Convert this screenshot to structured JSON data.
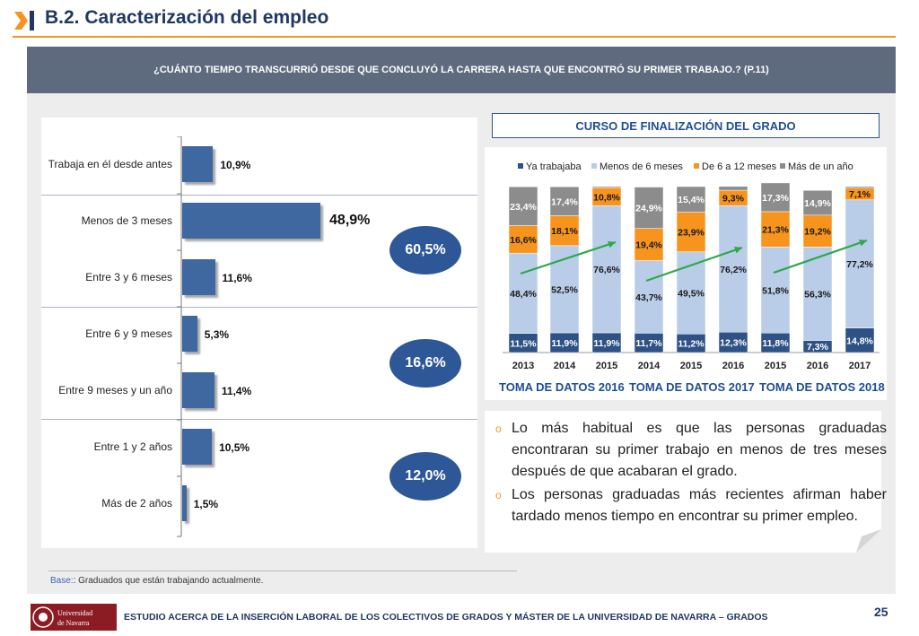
{
  "header": {
    "title": "B.2. Caracterización del empleo"
  },
  "question": "¿CUÁNTO TIEMPO TRANSCURRIÓ DESDE QUE CONCLUYÓ LA CARRERA HASTA QUE ENCONTRÓ SU PRIMER TRABAJO.? (P.11)",
  "groups": [
    {
      "label": "60,5%"
    },
    {
      "label": "16,6%"
    },
    {
      "label": "12,0%"
    }
  ],
  "curso_title": "CURSO DE FINALIZACIÓN DEL GRADO",
  "tomas": [
    {
      "label": "TOMA DE DATOS 2016"
    },
    {
      "label": "TOMA DE DATOS 2017"
    },
    {
      "label": "TOMA DE DATOS 2018"
    }
  ],
  "bullets": [
    {
      "text": "Lo más habitual es que las personas graduadas encontraran su primer trabajo en menos de tres meses después de que acabaran el grado."
    },
    {
      "text": "Los personas graduadas más recientes afirman haber tardado menos tiempo en encontrar su primer empleo."
    }
  ],
  "base": {
    "label": "Base:",
    "text": ": Graduados que están trabajando actualmente."
  },
  "footer": {
    "text": "ESTUDIO ACERCA DE LA INSERCIÓN LABORAL DE LOS COLECTIVOS DE GRADOS Y MÁSTER DE LA UNIVERSIDAD DE NAVARRA – GRADOS",
    "logo_text": "Universidad de Navarra",
    "page_number": "25"
  },
  "colors": {
    "accent": "#f7941d",
    "navy": "#1f3864",
    "bar_blue": "#3f67a0",
    "series": [
      "#2e5286",
      "#b9cde8",
      "#f7941d",
      "#8c8c8c"
    ],
    "arrow": "#2ea84a"
  },
  "chart_data": [
    {
      "type": "bar",
      "orientation": "horizontal",
      "categories": [
        {
          "label": "Trabaja en él desde antes",
          "value": 10.9,
          "value_label": "10,9%"
        },
        {
          "label": "Menos de 3 meses",
          "value": 48.9,
          "value_label": "48,9%"
        },
        {
          "label": "Entre 3 y 6 meses",
          "value": 11.6,
          "value_label": "11,6%"
        },
        {
          "label": "Entre 6 y 9 meses",
          "value": 5.3,
          "value_label": "5,3%"
        },
        {
          "label": "Entre 9 meses y un año",
          "value": 11.4,
          "value_label": "11,4%"
        },
        {
          "label": "Entre 1 y 2 años",
          "value": 10.5,
          "value_label": "10,5%"
        },
        {
          "label": "Más de 2 años",
          "value": 1.5,
          "value_label": "1,5%"
        }
      ]
    },
    {
      "type": "bar",
      "stacked": true,
      "legend": [
        "Ya trabajaba",
        "Menos de 6 meses",
        "De 6 a 12 meses",
        "Más de un año"
      ],
      "legend_position": "top",
      "categories": [
        "2013",
        "2014",
        "2015",
        "2014",
        "2015",
        "2016",
        "2015",
        "2016",
        "2017"
      ],
      "series": [
        {
          "name": "Ya trabajaba",
          "values": [
            11.5,
            11.9,
            11.9,
            11.7,
            11.2,
            12.3,
            11.8,
            7.3,
            14.8
          ],
          "labels": [
            "11,5%",
            "11,9%",
            "11,9%",
            "11,7%",
            "11,2%",
            "12,3%",
            "11,8%",
            "7,3%",
            "14,8%"
          ]
        },
        {
          "name": "Menos de 6 meses",
          "values": [
            48.4,
            52.5,
            76.6,
            43.7,
            49.5,
            76.2,
            51.8,
            56.3,
            77.2
          ],
          "labels": [
            "48,4%",
            "52,5%",
            "76,6%",
            "43,7%",
            "49,5%",
            "76,2%",
            "51,8%",
            "56,3%",
            "77,2%"
          ]
        },
        {
          "name": "De 6 a 12 meses",
          "values": [
            16.6,
            18.1,
            10.8,
            19.4,
            23.9,
            9.3,
            21.3,
            19.2,
            7.1
          ],
          "labels": [
            "16,6%",
            "18,1%",
            "10,8%",
            "19,4%",
            "23,9%",
            "9,3%",
            "21,3%",
            "19,2%",
            "7,1%"
          ]
        },
        {
          "name": "Más de un año",
          "values": [
            23.4,
            17.4,
            0.7,
            24.9,
            15.4,
            2.3,
            17.3,
            14.9,
            0.9
          ],
          "labels": [
            "23,4%",
            "17,4%",
            "",
            "24,9%",
            "15,4%",
            "",
            "17,3%",
            "14,9%",
            ""
          ]
        }
      ],
      "ylim": [
        0,
        100
      ]
    }
  ]
}
